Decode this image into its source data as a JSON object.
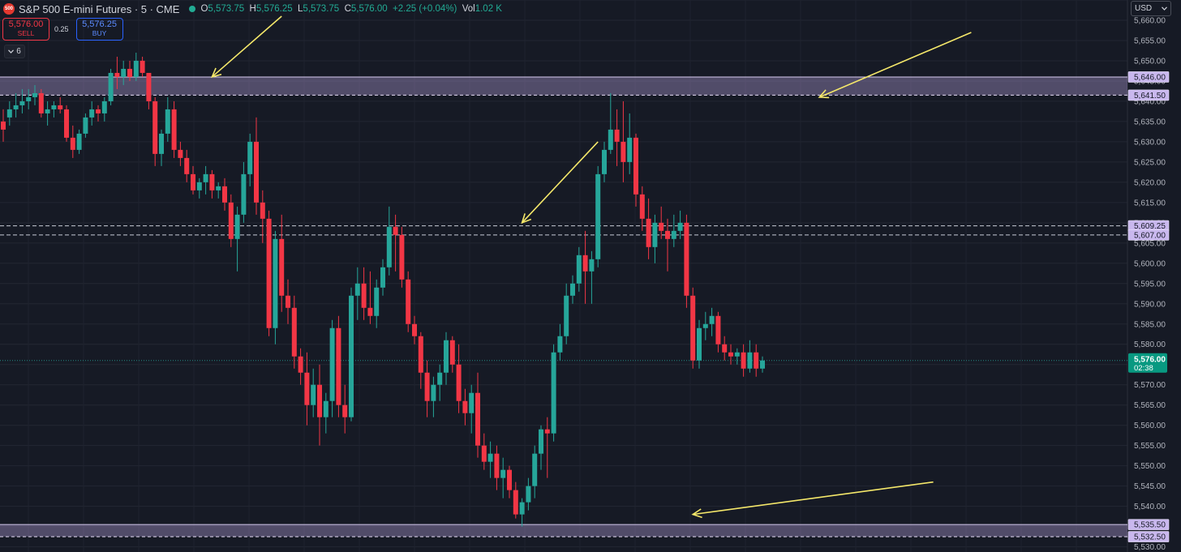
{
  "header": {
    "logo_text": "500",
    "title": "S&P 500 E-mini Futures · 5 · CME",
    "open_label": "O",
    "open": "5,573.75",
    "high_label": "H",
    "high": "5,576.25",
    "low_label": "L",
    "low": "5,573.75",
    "close_label": "C",
    "close": "5,576.00",
    "change": "+2.25 (+0.04%)",
    "vol_label": "Vol",
    "vol": "1.02 K",
    "status_color": "#22ab94"
  },
  "trade": {
    "sell_price": "5,576.00",
    "sell_label": "SELL",
    "spread": "0.25",
    "buy_price": "5,576.25",
    "buy_label": "BUY"
  },
  "layers": {
    "count": "6",
    "icon": "chevron-down-icon"
  },
  "currency": {
    "value": "USD",
    "icon": "chevron-down-icon"
  },
  "chart_data": {
    "type": "candlestick",
    "ylim": [
      5530,
      5665
    ],
    "y_ticks": [
      "5,530.00",
      "5,535.00",
      "5,540.00",
      "5,545.00",
      "5,550.00",
      "5,555.00",
      "5,560.00",
      "5,565.00",
      "5,570.00",
      "5,575.00",
      "5,580.00",
      "5,585.00",
      "5,590.00",
      "5,595.00",
      "5,600.00",
      "5,605.00",
      "5,610.00",
      "5,615.00",
      "5,620.00",
      "5,625.00",
      "5,630.00",
      "5,635.00",
      "5,640.00",
      "5,645.00",
      "5,650.00",
      "5,655.00",
      "5,660.00"
    ],
    "colors": {
      "up": "#26a69a",
      "down": "#f23645",
      "zone": "#b39ddb",
      "arrow": "#f5e86a"
    },
    "last_price": {
      "value": 5576.0,
      "label": "5,576.00",
      "countdown": "02:38"
    },
    "zones": [
      {
        "top": 5646.0,
        "bottom": 5641.5,
        "labels": [
          "5,646.00",
          "5,641.50"
        ]
      },
      {
        "top": 5535.5,
        "bottom": 5532.5,
        "labels": [
          "5,535.50",
          "5,532.50"
        ]
      }
    ],
    "dashed_levels": [
      {
        "value": 5609.25,
        "label": "5,609.25"
      },
      {
        "value": 5607.0,
        "label": "5,607.00"
      }
    ],
    "arrows": [
      {
        "from": [
          44,
          5661
        ],
        "to": [
          33,
          5646
        ]
      },
      {
        "from": [
          153,
          5657
        ],
        "to": [
          129,
          5641
        ]
      },
      {
        "from": [
          94,
          5630
        ],
        "to": [
          82,
          5610
        ]
      },
      {
        "from": [
          147,
          5546
        ],
        "to": [
          109,
          5538
        ]
      }
    ],
    "ohlc": [
      [
        5635,
        5638,
        5630,
        5633
      ],
      [
        5636,
        5640,
        5634,
        5638
      ],
      [
        5638,
        5642,
        5636,
        5639
      ],
      [
        5639,
        5643,
        5637,
        5640
      ],
      [
        5640,
        5643,
        5638,
        5641
      ],
      [
        5641,
        5644,
        5639,
        5642
      ],
      [
        5642,
        5643,
        5636,
        5637
      ],
      [
        5637,
        5640,
        5634,
        5638
      ],
      [
        5638,
        5640,
        5636,
        5639
      ],
      [
        5639,
        5641,
        5637,
        5638
      ],
      [
        5638,
        5639,
        5630,
        5631
      ],
      [
        5631,
        5634,
        5626,
        5628
      ],
      [
        5628,
        5633,
        5627,
        5632
      ],
      [
        5632,
        5637,
        5631,
        5636
      ],
      [
        5636,
        5640,
        5634,
        5638
      ],
      [
        5638,
        5639,
        5635,
        5637
      ],
      [
        5637,
        5641,
        5635,
        5640
      ],
      [
        5640,
        5648,
        5639,
        5647
      ],
      [
        5647,
        5651,
        5643,
        5646
      ],
      [
        5646,
        5650,
        5644,
        5648
      ],
      [
        5648,
        5650,
        5645,
        5646
      ],
      [
        5646,
        5652,
        5645,
        5650
      ],
      [
        5650,
        5651,
        5646,
        5647
      ],
      [
        5647,
        5646,
        5638,
        5640
      ],
      [
        5640,
        5641,
        5624,
        5627
      ],
      [
        5627,
        5633,
        5624,
        5632
      ],
      [
        5632,
        5641,
        5630,
        5638
      ],
      [
        5638,
        5640,
        5626,
        5628
      ],
      [
        5628,
        5630,
        5624,
        5626
      ],
      [
        5626,
        5628,
        5620,
        5622
      ],
      [
        5622,
        5624,
        5617,
        5618
      ],
      [
        5618,
        5621,
        5616,
        5620
      ],
      [
        5620,
        5624,
        5617,
        5622
      ],
      [
        5622,
        5623,
        5616,
        5618
      ],
      [
        5618,
        5620,
        5616,
        5619
      ],
      [
        5619,
        5621,
        5613,
        5615
      ],
      [
        5615,
        5617,
        5604,
        5606
      ],
      [
        5606,
        5614,
        5598,
        5612
      ],
      [
        5612,
        5625,
        5610,
        5622
      ],
      [
        5622,
        5632,
        5619,
        5630
      ],
      [
        5630,
        5636,
        5612,
        5615
      ],
      [
        5615,
        5618,
        5605,
        5611
      ],
      [
        5611,
        5613,
        5582,
        5584
      ],
      [
        5584,
        5608,
        5580,
        5606
      ],
      [
        5606,
        5612,
        5588,
        5592
      ],
      [
        5592,
        5596,
        5585,
        5589
      ],
      [
        5589,
        5592,
        5574,
        5577
      ],
      [
        5577,
        5579,
        5570,
        5573
      ],
      [
        5573,
        5578,
        5560,
        5565
      ],
      [
        5565,
        5574,
        5562,
        5570
      ],
      [
        5570,
        5575,
        5555,
        5562
      ],
      [
        5562,
        5568,
        5558,
        5566
      ],
      [
        5566,
        5586,
        5562,
        5584
      ],
      [
        5584,
        5587,
        5562,
        5565
      ],
      [
        5565,
        5570,
        5558,
        5562
      ],
      [
        5562,
        5594,
        5561,
        5592
      ],
      [
        5592,
        5599,
        5586,
        5595
      ],
      [
        5595,
        5599,
        5586,
        5589
      ],
      [
        5589,
        5598,
        5585,
        5587
      ],
      [
        5587,
        5596,
        5584,
        5594
      ],
      [
        5594,
        5601,
        5592,
        5599
      ],
      [
        5599,
        5614,
        5597,
        5609
      ],
      [
        5609,
        5612,
        5598,
        5607
      ],
      [
        5607,
        5609,
        5594,
        5596
      ],
      [
        5596,
        5598,
        5583,
        5585
      ],
      [
        5585,
        5587,
        5580,
        5582
      ],
      [
        5582,
        5583,
        5569,
        5573
      ],
      [
        5573,
        5576,
        5562,
        5566
      ],
      [
        5566,
        5572,
        5562,
        5570
      ],
      [
        5570,
        5575,
        5566,
        5573
      ],
      [
        5573,
        5583,
        5570,
        5581
      ],
      [
        5581,
        5582,
        5573,
        5575
      ],
      [
        5575,
        5580,
        5563,
        5566
      ],
      [
        5566,
        5569,
        5560,
        5563
      ],
      [
        5563,
        5570,
        5558,
        5568
      ],
      [
        5568,
        5573,
        5552,
        5555
      ],
      [
        5555,
        5558,
        5549,
        5551
      ],
      [
        5551,
        5556,
        5547,
        5553
      ],
      [
        5553,
        5555,
        5544,
        5547
      ],
      [
        5547,
        5552,
        5542,
        5549
      ],
      [
        5549,
        5550,
        5542,
        5544
      ],
      [
        5544,
        5546,
        5537,
        5538
      ],
      [
        5538,
        5542,
        5535,
        5541
      ],
      [
        5541,
        5547,
        5539,
        5545
      ],
      [
        5545,
        5555,
        5542,
        5553
      ],
      [
        5553,
        5560,
        5549,
        5559
      ],
      [
        5559,
        5562,
        5547,
        5558
      ],
      [
        5558,
        5580,
        5556,
        5578
      ],
      [
        5578,
        5585,
        5576,
        5582
      ],
      [
        5582,
        5595,
        5580,
        5592
      ],
      [
        5592,
        5597,
        5590,
        5595
      ],
      [
        5595,
        5604,
        5593,
        5602
      ],
      [
        5602,
        5608,
        5590,
        5598
      ],
      [
        5598,
        5603,
        5590,
        5601
      ],
      [
        5601,
        5624,
        5599,
        5622
      ],
      [
        5622,
        5630,
        5620,
        5628
      ],
      [
        5628,
        5642,
        5627,
        5633
      ],
      [
        5633,
        5638,
        5624,
        5630
      ],
      [
        5630,
        5640,
        5620,
        5625
      ],
      [
        5625,
        5637,
        5622,
        5631
      ],
      [
        5631,
        5632,
        5614,
        5617
      ],
      [
        5617,
        5619,
        5608,
        5611
      ],
      [
        5611,
        5616,
        5601,
        5604
      ],
      [
        5604,
        5612,
        5600,
        5610
      ],
      [
        5610,
        5614,
        5606,
        5608
      ],
      [
        5608,
        5611,
        5598,
        5606
      ],
      [
        5606,
        5612,
        5604,
        5608
      ],
      [
        5608,
        5613,
        5606,
        5610
      ],
      [
        5610,
        5612,
        5589,
        5592
      ],
      [
        5592,
        5594,
        5574,
        5576
      ],
      [
        5576,
        5586,
        5574,
        5584
      ],
      [
        5584,
        5588,
        5581,
        5585
      ],
      [
        5585,
        5589,
        5582,
        5587
      ],
      [
        5587,
        5588,
        5578,
        5580
      ],
      [
        5580,
        5582,
        5576,
        5578
      ],
      [
        5578,
        5580,
        5575,
        5577
      ],
      [
        5577,
        5579,
        5575,
        5578
      ],
      [
        5578,
        5580,
        5572,
        5574
      ],
      [
        5574,
        5581,
        5573,
        5578
      ],
      [
        5578,
        5580,
        5572,
        5574
      ],
      [
        5574,
        5577,
        5573,
        5576
      ]
    ]
  }
}
